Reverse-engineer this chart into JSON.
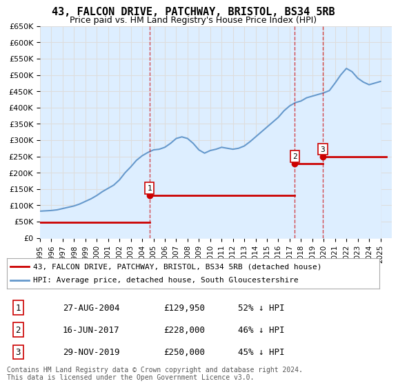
{
  "title": "43, FALCON DRIVE, PATCHWAY, BRISTOL, BS34 5RB",
  "subtitle": "Price paid vs. HM Land Registry's House Price Index (HPI)",
  "ylabel": "",
  "xlabel": "",
  "ylim": [
    0,
    650000
  ],
  "yticks": [
    0,
    50000,
    100000,
    150000,
    200000,
    250000,
    300000,
    350000,
    400000,
    450000,
    500000,
    550000,
    600000,
    650000
  ],
  "ytick_labels": [
    "£0",
    "£50K",
    "£100K",
    "£150K",
    "£200K",
    "£250K",
    "£300K",
    "£350K",
    "£400K",
    "£450K",
    "£500K",
    "£550K",
    "£600K",
    "£650K"
  ],
  "xlim_start": 1995.0,
  "xlim_end": 2026.0,
  "xtick_years": [
    1995,
    1996,
    1997,
    1998,
    1999,
    2000,
    2001,
    2002,
    2003,
    2004,
    2005,
    2006,
    2007,
    2008,
    2009,
    2010,
    2011,
    2012,
    2013,
    2014,
    2015,
    2016,
    2017,
    2018,
    2019,
    2020,
    2021,
    2022,
    2023,
    2024,
    2025
  ],
  "transactions": [
    {
      "label": "1",
      "date_num": 2004.65,
      "price": 129950,
      "pct": "52% ↓ HPI",
      "date_str": "27-AUG-2004"
    },
    {
      "label": "2",
      "date_num": 2017.45,
      "price": 228000,
      "pct": "46% ↓ HPI",
      "date_str": "16-JUN-2017"
    },
    {
      "label": "3",
      "date_num": 2019.91,
      "price": 250000,
      "pct": "45% ↓ HPI",
      "date_str": "29-NOV-2019"
    }
  ],
  "red_line_segments": [
    {
      "x": [
        1995.0,
        2004.65
      ],
      "y": [
        47000,
        47000
      ]
    },
    {
      "x": [
        2004.65,
        2017.45
      ],
      "y": [
        129950,
        129950
      ]
    },
    {
      "x": [
        2017.45,
        2019.91
      ],
      "y": [
        228000,
        228000
      ]
    },
    {
      "x": [
        2019.91,
        2025.5
      ],
      "y": [
        250000,
        250000
      ]
    }
  ],
  "hpi_x": [
    1995.0,
    1995.5,
    1996.0,
    1996.5,
    1997.0,
    1997.5,
    1998.0,
    1998.5,
    1999.0,
    1999.5,
    2000.0,
    2000.5,
    2001.0,
    2001.5,
    2002.0,
    2002.5,
    2003.0,
    2003.5,
    2004.0,
    2004.5,
    2005.0,
    2005.5,
    2006.0,
    2006.5,
    2007.0,
    2007.5,
    2008.0,
    2008.5,
    2009.0,
    2009.5,
    2010.0,
    2010.5,
    2011.0,
    2011.5,
    2012.0,
    2012.5,
    2013.0,
    2013.5,
    2014.0,
    2014.5,
    2015.0,
    2015.5,
    2016.0,
    2016.5,
    2017.0,
    2017.5,
    2018.0,
    2018.5,
    2019.0,
    2019.5,
    2020.0,
    2020.5,
    2021.0,
    2021.5,
    2022.0,
    2022.5,
    2023.0,
    2023.5,
    2024.0,
    2024.5,
    2025.0
  ],
  "hpi_y": [
    82000,
    83000,
    84000,
    86000,
    90000,
    94000,
    98000,
    104000,
    112000,
    120000,
    130000,
    142000,
    152000,
    162000,
    178000,
    200000,
    218000,
    238000,
    252000,
    262000,
    270000,
    272000,
    278000,
    290000,
    305000,
    310000,
    305000,
    290000,
    270000,
    260000,
    268000,
    272000,
    278000,
    275000,
    272000,
    275000,
    282000,
    295000,
    310000,
    325000,
    340000,
    355000,
    370000,
    390000,
    405000,
    415000,
    420000,
    430000,
    435000,
    440000,
    445000,
    452000,
    475000,
    500000,
    520000,
    510000,
    490000,
    478000,
    470000,
    475000,
    480000
  ],
  "red_color": "#cc0000",
  "blue_color": "#6699cc",
  "blue_fill_color": "#ddeeff",
  "marker_box_color": "#cc0000",
  "grid_color": "#dddddd",
  "bg_color": "#ffffff",
  "legend_border_color": "#aaaaaa",
  "footer_text": "Contains HM Land Registry data © Crown copyright and database right 2024.\nThis data is licensed under the Open Government Licence v3.0.",
  "legend_line1": "43, FALCON DRIVE, PATCHWAY, BRISTOL, BS34 5RB (detached house)",
  "legend_line2": "HPI: Average price, detached house, South Gloucestershire"
}
